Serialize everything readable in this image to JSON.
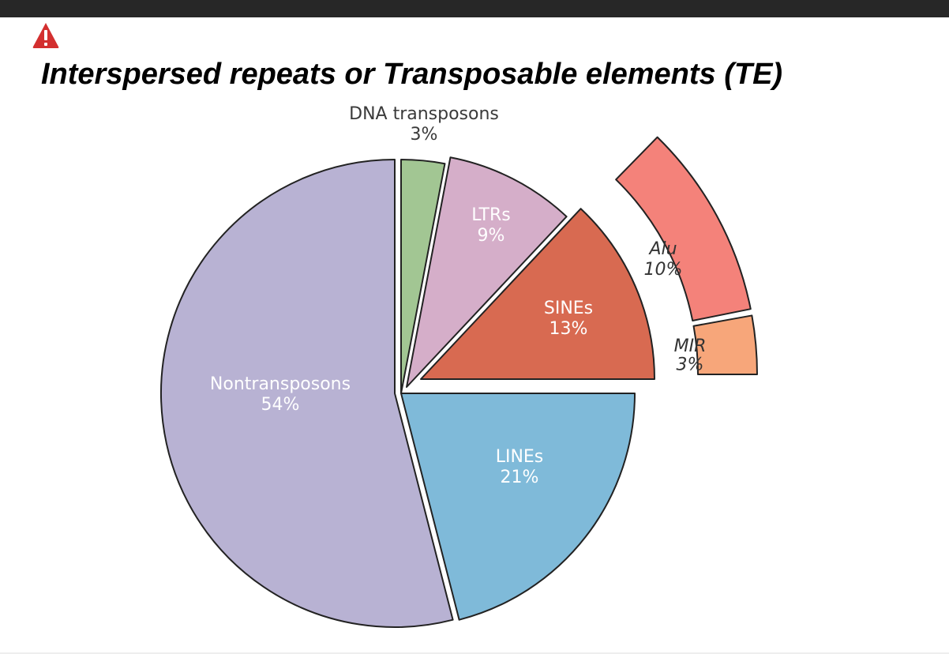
{
  "slide": {
    "title": "Interspersed repeats or Transposable elements (TE)",
    "icon": "warning-triangle-icon",
    "colors": {
      "top_bar": "#272727",
      "icon": "#d32f2f"
    }
  },
  "chart_data": {
    "type": "pie",
    "unit": "%",
    "slices": [
      {
        "name": "Nontransposons",
        "value": 54,
        "label_value": "54%",
        "color": "#b8b2d3",
        "italic": false,
        "label_color": "#ffffff",
        "exploded": false
      },
      {
        "name": "DNA transposons",
        "value": 3,
        "label_value": "3%",
        "color": "#a2c693",
        "italic": false,
        "label_color": "#3a3a3a",
        "exploded": true
      },
      {
        "name": "LTRs",
        "value": 9,
        "label_value": "9%",
        "color": "#d5aec9",
        "italic": false,
        "label_color": "#ffffff",
        "exploded": true
      },
      {
        "name": "SINEs",
        "value": 13,
        "label_value": "13%",
        "color": "#d86a51",
        "italic": false,
        "label_color": "#ffffff",
        "exploded": true
      },
      {
        "name": "LINEs",
        "value": 21,
        "label_value": "21%",
        "color": "#7fbad9",
        "italic": false,
        "label_color": "#ffffff",
        "exploded": true
      }
    ],
    "breakdown": {
      "parent": "SINEs",
      "slices": [
        {
          "name": "Alu",
          "value": 10,
          "label_value": "10%",
          "color": "#f4827a",
          "italic": true,
          "label_color": "#333333"
        },
        {
          "name": "MIR",
          "value": 3,
          "label_value": "3%",
          "color": "#f7a67a",
          "italic": true,
          "label_color": "#333333"
        }
      ]
    }
  }
}
